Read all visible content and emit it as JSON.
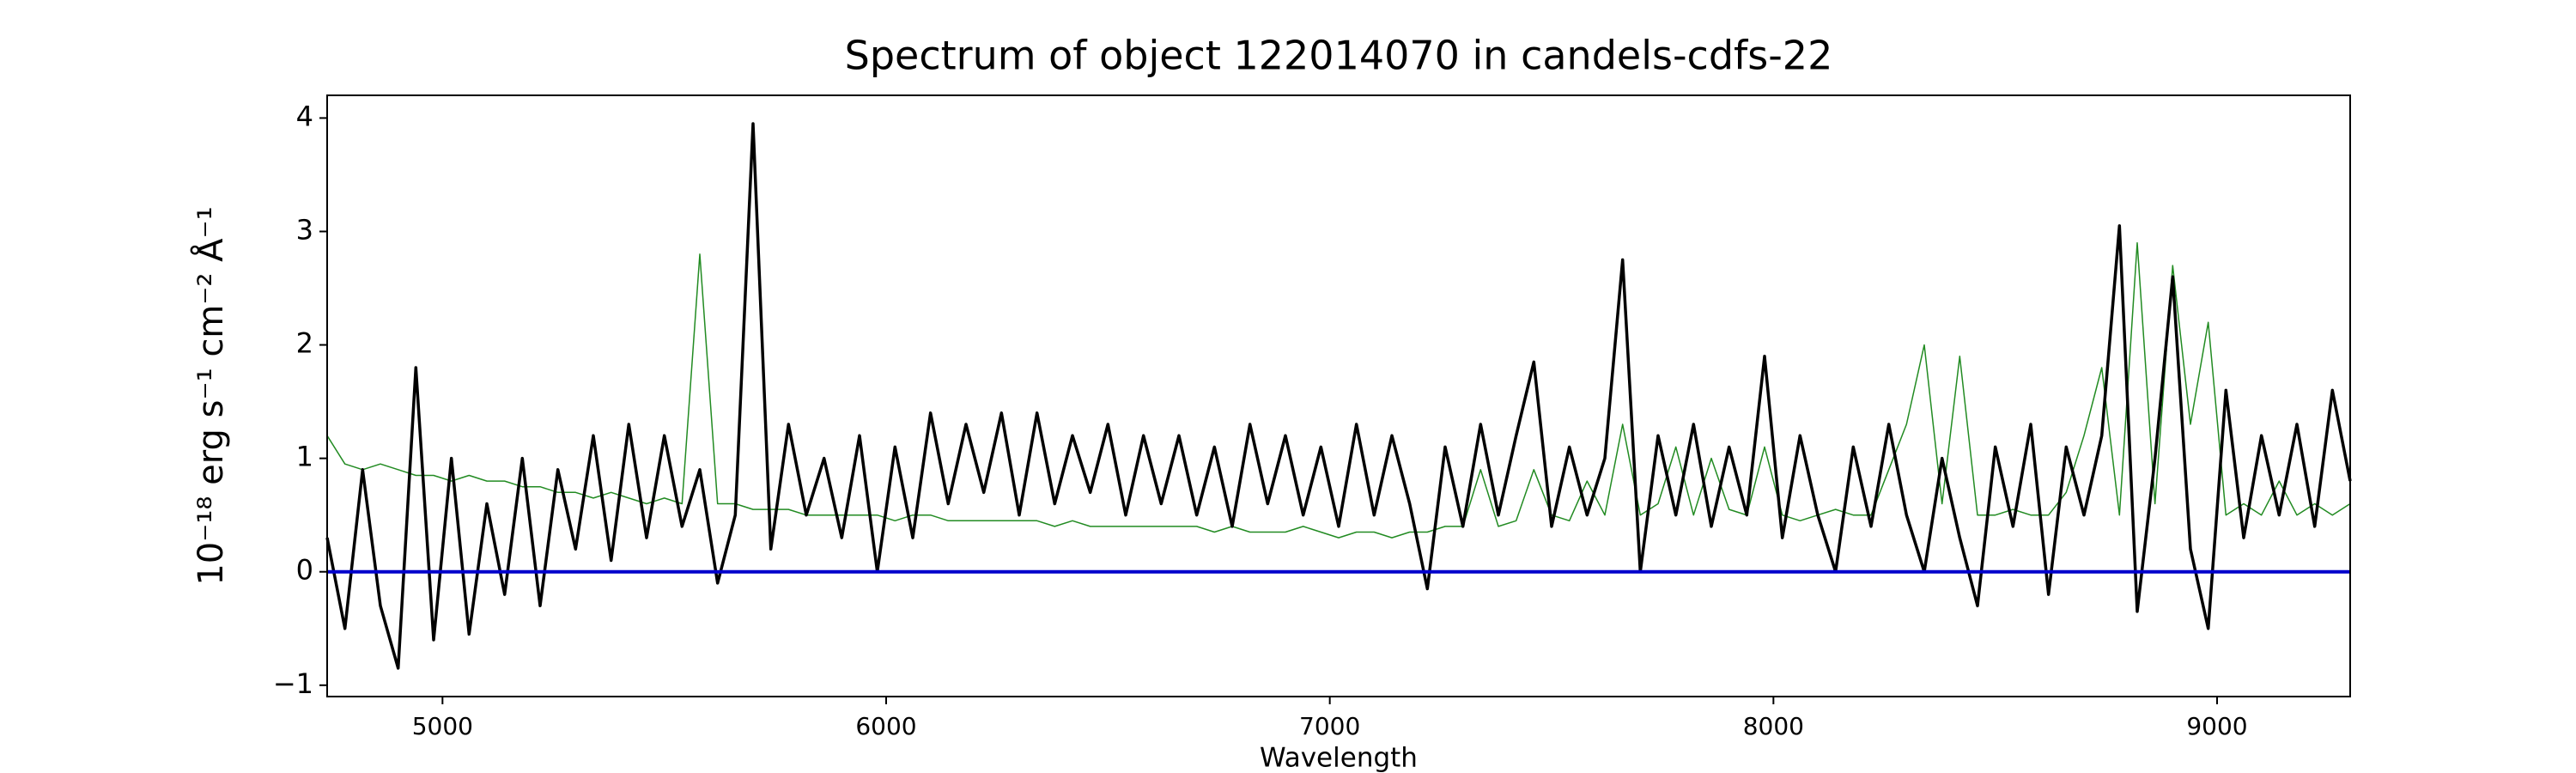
{
  "chart_data": {
    "type": "line",
    "title": "Spectrum of object 122014070 in candels-cdfs-22",
    "xlabel": "Wavelength",
    "ylabel": "10⁻¹⁸ erg s⁻¹ cm⁻² Å⁻¹",
    "x": [
      4740,
      4780,
      4820,
      4860,
      4900,
      4940,
      4980,
      5020,
      5060,
      5100,
      5140,
      5180,
      5220,
      5260,
      5300,
      5340,
      5380,
      5420,
      5460,
      5500,
      5540,
      5580,
      5620,
      5660,
      5700,
      5740,
      5780,
      5820,
      5860,
      5900,
      5940,
      5980,
      6020,
      6060,
      6100,
      6140,
      6180,
      6220,
      6260,
      6300,
      6340,
      6380,
      6420,
      6460,
      6500,
      6540,
      6580,
      6620,
      6660,
      6700,
      6740,
      6780,
      6820,
      6860,
      6900,
      6940,
      6980,
      7020,
      7060,
      7100,
      7140,
      7180,
      7220,
      7260,
      7300,
      7340,
      7380,
      7420,
      7460,
      7500,
      7540,
      7580,
      7620,
      7660,
      7700,
      7740,
      7780,
      7820,
      7860,
      7900,
      7940,
      7980,
      8020,
      8060,
      8100,
      8140,
      8180,
      8220,
      8260,
      8300,
      8340,
      8380,
      8420,
      8460,
      8500,
      8540,
      8580,
      8620,
      8660,
      8700,
      8740,
      8780,
      8820,
      8860,
      8900,
      8940,
      8980,
      9020,
      9060,
      9100,
      9140,
      9180,
      9220,
      9260,
      9300
    ],
    "series": [
      {
        "color": "#228b22",
        "width": 1.5,
        "values": [
          1.2,
          0.95,
          0.9,
          0.95,
          0.9,
          0.85,
          0.85,
          0.8,
          0.85,
          0.8,
          0.8,
          0.75,
          0.75,
          0.7,
          0.7,
          0.65,
          0.7,
          0.65,
          0.6,
          0.65,
          0.6,
          2.8,
          0.6,
          0.6,
          0.55,
          0.55,
          0.55,
          0.5,
          0.5,
          0.5,
          0.5,
          0.5,
          0.45,
          0.5,
          0.5,
          0.45,
          0.45,
          0.45,
          0.45,
          0.45,
          0.45,
          0.4,
          0.45,
          0.4,
          0.4,
          0.4,
          0.4,
          0.4,
          0.4,
          0.4,
          0.35,
          0.4,
          0.35,
          0.35,
          0.35,
          0.4,
          0.35,
          0.3,
          0.35,
          0.35,
          0.3,
          0.35,
          0.35,
          0.4,
          0.4,
          0.9,
          0.4,
          0.45,
          0.9,
          0.5,
          0.45,
          0.8,
          0.5,
          1.3,
          0.5,
          0.6,
          1.1,
          0.5,
          1.0,
          0.55,
          0.5,
          1.1,
          0.5,
          0.45,
          0.5,
          0.55,
          0.5,
          0.5,
          0.9,
          1.3,
          2.0,
          0.6,
          1.9,
          0.5,
          0.5,
          0.55,
          0.5,
          0.5,
          0.7,
          1.2,
          1.8,
          0.5,
          2.9,
          0.6,
          2.7,
          1.3,
          2.2,
          0.5,
          0.6,
          0.5,
          0.8,
          0.5,
          0.6,
          0.5,
          0.6
        ]
      },
      {
        "color": "#000000",
        "width": 3.5,
        "values": [
          0.3,
          -0.5,
          0.9,
          -0.3,
          -0.85,
          1.8,
          -0.6,
          1.0,
          -0.55,
          0.6,
          -0.2,
          1.0,
          -0.3,
          0.9,
          0.2,
          1.2,
          0.1,
          1.3,
          0.3,
          1.2,
          0.4,
          0.9,
          -0.1,
          0.5,
          3.95,
          0.2,
          1.3,
          0.5,
          1.0,
          0.3,
          1.2,
          0.0,
          1.1,
          0.3,
          1.4,
          0.6,
          1.3,
          0.7,
          1.4,
          0.5,
          1.4,
          0.6,
          1.2,
          0.7,
          1.3,
          0.5,
          1.2,
          0.6,
          1.2,
          0.5,
          1.1,
          0.4,
          1.3,
          0.6,
          1.2,
          0.5,
          1.1,
          0.4,
          1.3,
          0.5,
          1.2,
          0.6,
          -0.15,
          1.1,
          0.4,
          1.3,
          0.5,
          1.2,
          1.85,
          0.4,
          1.1,
          0.5,
          1.0,
          2.75,
          0.0,
          1.2,
          0.5,
          1.3,
          0.4,
          1.1,
          0.5,
          1.9,
          0.3,
          1.2,
          0.5,
          0.0,
          1.1,
          0.4,
          1.3,
          0.5,
          0.0,
          1.0,
          0.3,
          -0.3,
          1.1,
          0.4,
          1.3,
          -0.2,
          1.1,
          0.5,
          1.2,
          3.05,
          -0.35,
          1.0,
          2.6,
          0.2,
          -0.5,
          1.6,
          0.3,
          1.2,
          0.5,
          1.3,
          0.4,
          1.6,
          0.8
        ]
      }
    ],
    "hlines": [
      {
        "y": 0,
        "color": "#0000cc"
      }
    ],
    "xlim": [
      4740,
      9300
    ],
    "ylim": [
      -1.1,
      4.2
    ],
    "xticks": [
      5000,
      6000,
      7000,
      8000,
      9000
    ],
    "yticks": [
      {
        "value": -1,
        "label": "−1"
      },
      0,
      1,
      2,
      3,
      4
    ]
  }
}
